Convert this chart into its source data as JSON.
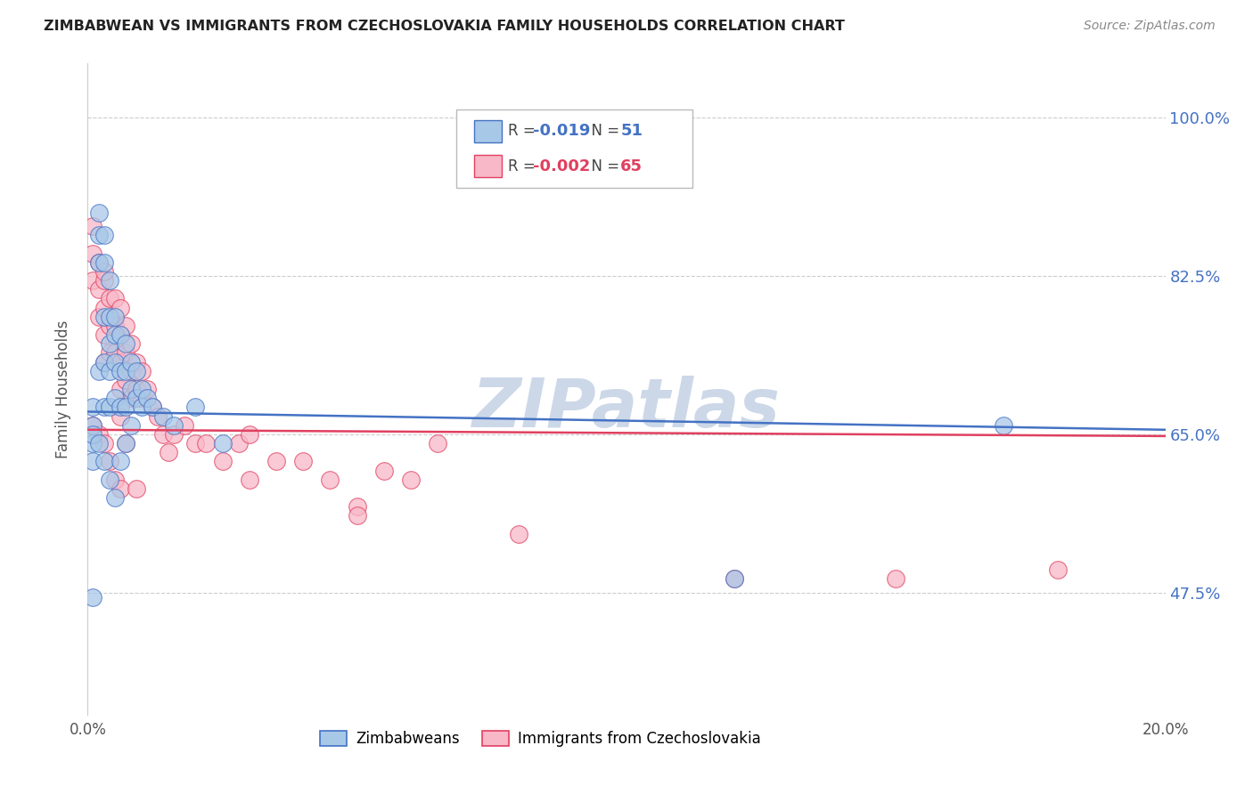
{
  "title": "ZIMBABWEAN VS IMMIGRANTS FROM CZECHOSLOVAKIA FAMILY HOUSEHOLDS CORRELATION CHART",
  "source": "Source: ZipAtlas.com",
  "ylabel": "Family Households",
  "yticks": [
    0.475,
    0.65,
    0.825,
    1.0
  ],
  "ytick_labels": [
    "47.5%",
    "65.0%",
    "82.5%",
    "100.0%"
  ],
  "xlim": [
    0.0,
    0.2
  ],
  "ylim": [
    0.34,
    1.06
  ],
  "r1": "-0.019",
  "n1": "51",
  "r2": "-0.002",
  "n2": "65",
  "color1": "#a8c8e8",
  "color2": "#f8b8c8",
  "line_color1": "#4472c4",
  "line_color2": "#e04060",
  "watermark": "ZIPatlas",
  "watermark_color": "#ccd8e8",
  "legend_label1": "Zimbabweans",
  "legend_label2": "Immigrants from Czechoslovakia",
  "blue_x": [
    0.001,
    0.001,
    0.001,
    0.001,
    0.002,
    0.002,
    0.002,
    0.002,
    0.003,
    0.003,
    0.003,
    0.003,
    0.003,
    0.004,
    0.004,
    0.004,
    0.004,
    0.004,
    0.005,
    0.005,
    0.005,
    0.005,
    0.006,
    0.006,
    0.006,
    0.007,
    0.007,
    0.007,
    0.008,
    0.008,
    0.009,
    0.009,
    0.01,
    0.01,
    0.011,
    0.012,
    0.014,
    0.016,
    0.02,
    0.025,
    0.001,
    0.001,
    0.002,
    0.003,
    0.004,
    0.005,
    0.006,
    0.007,
    0.008,
    0.12,
    0.17
  ],
  "blue_y": [
    0.68,
    0.66,
    0.64,
    0.47,
    0.895,
    0.87,
    0.84,
    0.72,
    0.87,
    0.84,
    0.78,
    0.73,
    0.68,
    0.82,
    0.78,
    0.75,
    0.72,
    0.68,
    0.78,
    0.76,
    0.73,
    0.69,
    0.76,
    0.72,
    0.68,
    0.75,
    0.72,
    0.68,
    0.73,
    0.7,
    0.72,
    0.69,
    0.7,
    0.68,
    0.69,
    0.68,
    0.67,
    0.66,
    0.68,
    0.64,
    0.65,
    0.62,
    0.64,
    0.62,
    0.6,
    0.58,
    0.62,
    0.64,
    0.66,
    0.49,
    0.66
  ],
  "pink_x": [
    0.001,
    0.001,
    0.001,
    0.002,
    0.002,
    0.002,
    0.003,
    0.003,
    0.003,
    0.003,
    0.003,
    0.004,
    0.004,
    0.004,
    0.005,
    0.005,
    0.005,
    0.006,
    0.006,
    0.006,
    0.006,
    0.006,
    0.007,
    0.007,
    0.007,
    0.008,
    0.008,
    0.008,
    0.009,
    0.009,
    0.01,
    0.01,
    0.011,
    0.012,
    0.013,
    0.014,
    0.015,
    0.016,
    0.018,
    0.02,
    0.022,
    0.025,
    0.028,
    0.03,
    0.035,
    0.04,
    0.045,
    0.05,
    0.055,
    0.06,
    0.001,
    0.002,
    0.003,
    0.004,
    0.005,
    0.006,
    0.007,
    0.009,
    0.03,
    0.05,
    0.065,
    0.08,
    0.12,
    0.15,
    0.18
  ],
  "pink_y": [
    0.88,
    0.85,
    0.82,
    0.84,
    0.81,
    0.78,
    0.82,
    0.79,
    0.76,
    0.73,
    0.83,
    0.8,
    0.77,
    0.74,
    0.8,
    0.77,
    0.74,
    0.79,
    0.76,
    0.73,
    0.7,
    0.67,
    0.77,
    0.74,
    0.71,
    0.75,
    0.72,
    0.69,
    0.73,
    0.7,
    0.72,
    0.69,
    0.7,
    0.68,
    0.67,
    0.65,
    0.63,
    0.65,
    0.66,
    0.64,
    0.64,
    0.62,
    0.64,
    0.65,
    0.62,
    0.62,
    0.6,
    0.57,
    0.61,
    0.6,
    0.66,
    0.65,
    0.64,
    0.62,
    0.6,
    0.59,
    0.64,
    0.59,
    0.6,
    0.56,
    0.64,
    0.54,
    0.49,
    0.49,
    0.5
  ]
}
